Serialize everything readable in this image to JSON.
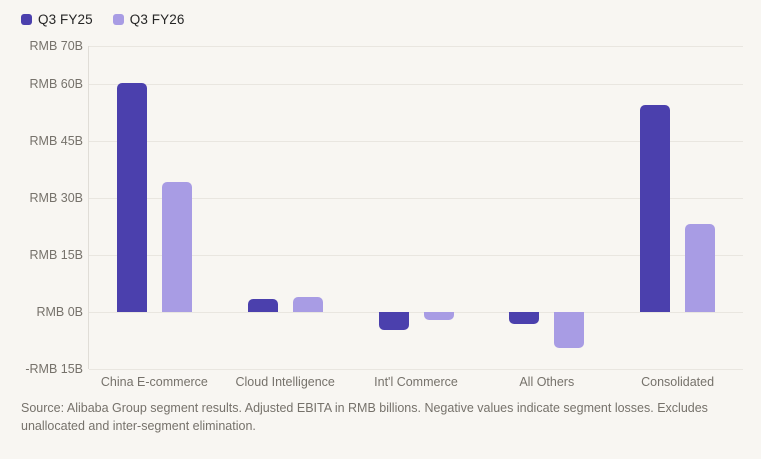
{
  "chart_data": {
    "type": "bar",
    "title": "",
    "xlabel": "",
    "ylabel": "",
    "categories": [
      "China E-commerce",
      "Cloud Intelligence",
      "Int'l Commerce",
      "All Others",
      "Consolidated"
    ],
    "series": [
      {
        "name": "Q3 FY25",
        "color": "#4b40ad",
        "values": [
          60.2,
          3.3,
          -4.8,
          -3.1,
          54.6
        ]
      },
      {
        "name": "Q3 FY26",
        "color": "#a89ce4",
        "values": [
          34.3,
          3.9,
          -2.1,
          -9.6,
          23.2
        ]
      }
    ],
    "ylim": [
      -15,
      70
    ],
    "yticks": [
      {
        "value": 70,
        "label": "RMB 70B"
      },
      {
        "value": 60,
        "label": "RMB 60B"
      },
      {
        "value": 45,
        "label": "RMB 45B"
      },
      {
        "value": 30,
        "label": "RMB 30B"
      },
      {
        "value": 15,
        "label": "RMB 15B"
      },
      {
        "value": 0,
        "label": "RMB 0B"
      },
      {
        "value": -15,
        "label": "-RMB 15B"
      }
    ],
    "grid": true,
    "legend_position": "top-left"
  },
  "source_note": {
    "text": "Source: Alibaba Group segment results. Adjusted EBITA in RMB billions. Negative values indicate segment losses. Excludes unallocated and inter-segment elimination."
  },
  "colors": {
    "background": "#f8f6f2",
    "gridline": "#e9e6e0",
    "axis_line": "#e0ddd7",
    "tick_label": "#76726b",
    "legend_label": "#262626",
    "bar_q3_fy25": "#4b40ad",
    "bar_q3_fy26": "#a89ce4"
  }
}
